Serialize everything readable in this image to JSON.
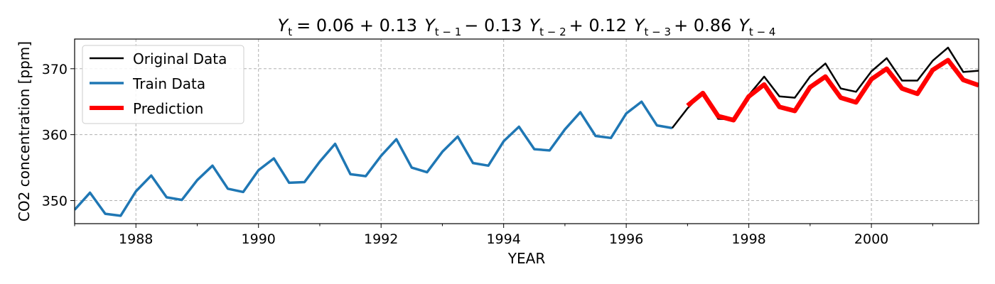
{
  "chart_data": {
    "type": "line",
    "title": "Y_t = 0.06 + 0.13 Y_{t-1} - 0.13 Y_{t-2} + 0.12 Y_{t-3} + 0.86 Y_{t-4}",
    "title_parts": {
      "y": "Y",
      "eq": "= 0.06 + 0.13",
      "minus": "− 0.13",
      "plus1": "+ 0.12",
      "plus2": "+ 0.86",
      "sub_t": "t",
      "sub_t1": "t − 1",
      "sub_t2": "t − 2",
      "sub_t3": "t − 3",
      "sub_t4": "t − 4"
    },
    "xlabel": "YEAR",
    "ylabel": "CO2 concentration [ppm]",
    "xlim": [
      1987.0,
      2001.75
    ],
    "ylim": [
      346.5,
      374.5
    ],
    "xticks": [
      1988,
      1990,
      1992,
      1994,
      1996,
      1998,
      2000
    ],
    "yticks": [
      350,
      360,
      370
    ],
    "grid": true,
    "legend_position": "upper-left",
    "series": [
      {
        "name": "Original Data",
        "color": "#000000",
        "x": [
          1996.75,
          1997.0,
          1997.25,
          1997.5,
          1997.75,
          1998.0,
          1998.25,
          1998.5,
          1998.75,
          1999.0,
          1999.25,
          1999.5,
          1999.75,
          2000.0,
          2000.25,
          2000.5,
          2000.75,
          2001.0,
          2001.25,
          2001.5,
          2001.75
        ],
        "values": [
          361.0,
          364.0,
          366.3,
          362.4,
          362.3,
          366.0,
          368.8,
          365.8,
          365.6,
          368.8,
          370.8,
          367.0,
          366.5,
          369.6,
          371.6,
          368.2,
          368.2,
          371.2,
          373.2,
          369.5,
          369.7
        ]
      },
      {
        "name": "Train Data",
        "color": "#1f77b4",
        "x": [
          1987.0,
          1987.25,
          1987.5,
          1987.75,
          1988.0,
          1988.25,
          1988.5,
          1988.75,
          1989.0,
          1989.25,
          1989.5,
          1989.75,
          1990.0,
          1990.25,
          1990.5,
          1990.75,
          1991.0,
          1991.25,
          1991.5,
          1991.75,
          1992.0,
          1992.25,
          1992.5,
          1992.75,
          1993.0,
          1993.25,
          1993.5,
          1993.75,
          1994.0,
          1994.25,
          1994.5,
          1994.75,
          1995.0,
          1995.25,
          1995.5,
          1995.75,
          1996.0,
          1996.25,
          1996.5,
          1996.75
        ],
        "values": [
          348.6,
          351.2,
          348.0,
          347.7,
          351.4,
          353.8,
          350.5,
          350.1,
          353.1,
          355.3,
          351.8,
          351.3,
          354.6,
          356.4,
          352.7,
          352.8,
          355.9,
          358.6,
          354.0,
          353.7,
          356.8,
          359.3,
          355.0,
          354.3,
          357.4,
          359.7,
          355.7,
          355.3,
          359.0,
          361.2,
          357.8,
          357.6,
          360.8,
          363.4,
          359.8,
          359.5,
          363.2,
          365.0,
          361.4,
          361.0
        ]
      },
      {
        "name": "Prediction",
        "color": "#ff0000",
        "x": [
          1997.0,
          1997.25,
          1997.5,
          1997.75,
          1998.0,
          1998.25,
          1998.5,
          1998.75,
          1999.0,
          1999.25,
          1999.5,
          1999.75,
          2000.0,
          2000.25,
          2000.5,
          2000.75,
          2001.0,
          2001.25,
          2001.5,
          2001.75
        ],
        "values": [
          364.4,
          366.3,
          362.8,
          362.2,
          365.8,
          367.6,
          364.2,
          363.6,
          367.2,
          368.8,
          365.6,
          364.9,
          368.4,
          370.0,
          367.0,
          366.2,
          369.8,
          371.3,
          368.3,
          367.5
        ]
      }
    ]
  }
}
